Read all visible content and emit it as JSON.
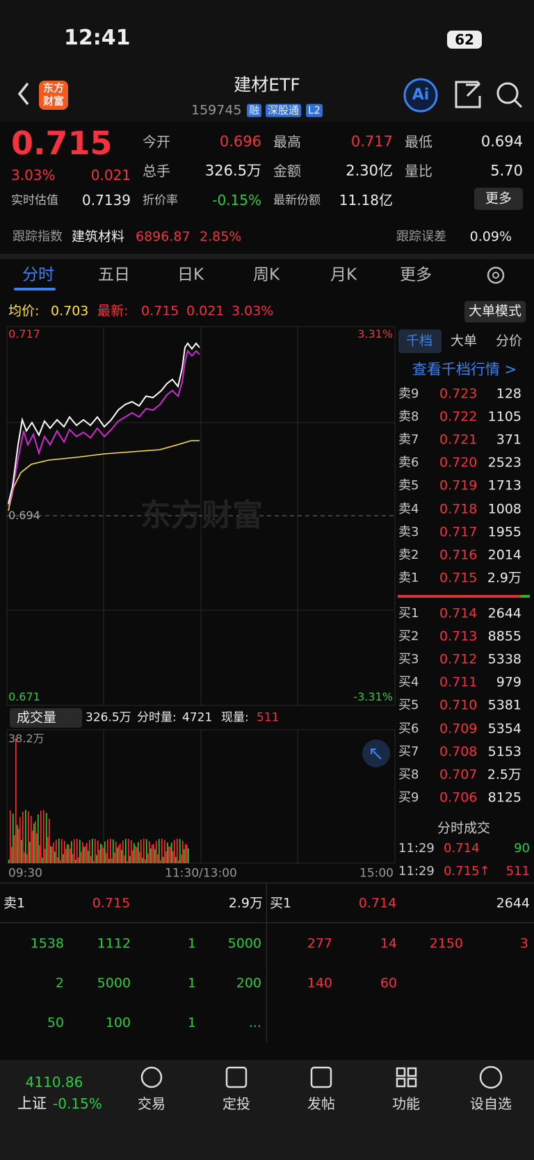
{
  "status": {
    "time": "12:41",
    "battery": "62"
  },
  "header": {
    "logo_line1": "东方",
    "logo_line2": "财富",
    "title": "建材ETF",
    "code": "159745",
    "tags": [
      "融",
      "深股通",
      "L2"
    ],
    "ai": "Ai"
  },
  "quote": {
    "price": "0.715",
    "change_pct": "3.03%",
    "change": "0.021",
    "fields": [
      {
        "label": "今开",
        "value": "0.696"
      },
      {
        "label": "最高",
        "value": "0.717"
      },
      {
        "label": "最低",
        "value": "0.694"
      },
      {
        "label": "总手",
        "value": "326.5万"
      },
      {
        "label": "金额",
        "value": "2.30亿"
      },
      {
        "label": "量比",
        "value": "5.70"
      }
    ],
    "est_label": "实时估值",
    "est": "0.7139",
    "premium_label": "折价率",
    "premium": "-0.15%",
    "shares_label": "最新份额",
    "shares": "11.18亿",
    "more": "更多"
  },
  "tracking": {
    "label": "跟踪指数",
    "index": "建筑材料",
    "value": "6896.87",
    "pct": "2.85%",
    "error_label": "跟踪误差",
    "error": "0.09%"
  },
  "tabs": [
    "分时",
    "五日",
    "日K",
    "周K",
    "月K",
    "更多"
  ],
  "avg_row": {
    "avg_label": "均价:",
    "avg": "0.703",
    "last_label": "最新:",
    "last": "0.715",
    "change": "0.021",
    "pct": "3.03%",
    "mode": "大单模式"
  },
  "chart": {
    "high": "0.717",
    "high_pct": "3.31%",
    "base": "0.694",
    "low": "0.671",
    "low_pct": "-3.31%",
    "watermark": "东方财富"
  },
  "volume": {
    "label": "成交量",
    "total": "326.5万",
    "minute_label": "分时量:",
    "minute": "4721",
    "now_label": "现量:",
    "now": "511",
    "max": "38.2万",
    "times": [
      "09:30",
      "11:30/13:00",
      "15:00"
    ]
  },
  "side": {
    "tabs": [
      "千档",
      "大单",
      "分价"
    ],
    "link": "查看千档行情 >",
    "asks": [
      [
        "卖9",
        "0.723",
        "128"
      ],
      [
        "卖8",
        "0.722",
        "1105"
      ],
      [
        "卖7",
        "0.721",
        "371"
      ],
      [
        "卖6",
        "0.720",
        "2523"
      ],
      [
        "卖5",
        "0.719",
        "1713"
      ],
      [
        "卖4",
        "0.718",
        "1008"
      ],
      [
        "卖3",
        "0.717",
        "1955"
      ],
      [
        "卖2",
        "0.716",
        "2014"
      ],
      [
        "卖1",
        "0.715",
        "2.9万"
      ]
    ],
    "bids": [
      [
        "买1",
        "0.714",
        "2644"
      ],
      [
        "买2",
        "0.713",
        "8855"
      ],
      [
        "买3",
        "0.712",
        "5338"
      ],
      [
        "买4",
        "0.711",
        "979"
      ],
      [
        "买5",
        "0.710",
        "5381"
      ],
      [
        "买6",
        "0.709",
        "5354"
      ],
      [
        "买7",
        "0.708",
        "5153"
      ],
      [
        "买8",
        "0.707",
        "2.5万"
      ],
      [
        "买9",
        "0.706",
        "8125"
      ]
    ],
    "trades_title": "分时成交",
    "trades": [
      [
        "11:29",
        "0.714",
        "90"
      ],
      [
        "11:29",
        "0.715↑",
        "511"
      ]
    ]
  },
  "book": {
    "sell": [
      "卖1",
      "0.715",
      "2.9万"
    ],
    "buy": [
      "买1",
      "0.714",
      "2644"
    ],
    "sell_queue": [
      [
        "1538",
        "1112",
        "1",
        "5000"
      ],
      [
        "2",
        "5000",
        "1",
        "200"
      ],
      [
        "50",
        "100",
        "1",
        "..."
      ]
    ],
    "buy_queue": [
      [
        "277",
        "14",
        "2150",
        "3"
      ],
      [
        "140",
        "60"
      ]
    ]
  },
  "nav": {
    "index": "4110.86",
    "market": "上证",
    "pct": "-0.15%",
    "items": [
      "交易",
      "定投",
      "发帖",
      "功能",
      "设自选"
    ]
  }
}
